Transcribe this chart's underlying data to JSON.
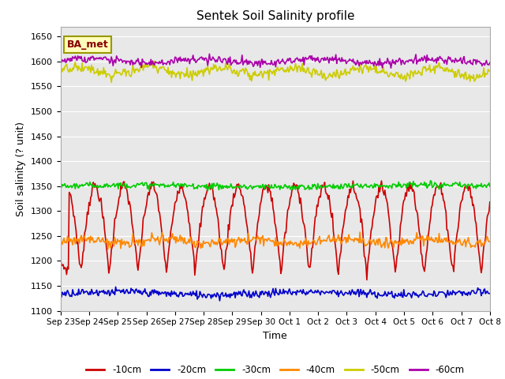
{
  "title": "Sentek Soil Salinity profile",
  "xlabel": "Time",
  "ylabel": "Soil salinity (? unit)",
  "ylim": [
    1100,
    1670
  ],
  "yticks": [
    1100,
    1150,
    1200,
    1250,
    1300,
    1350,
    1400,
    1450,
    1500,
    1550,
    1600,
    1650
  ],
  "annotation": "BA_met",
  "plot_bg_color": "#e8e8e8",
  "fig_bg_color": "#ffffff",
  "series": {
    "-10cm": {
      "color": "#cc0000",
      "lw": 1.2
    },
    "-20cm": {
      "color": "#0000cc",
      "lw": 1.2
    },
    "-30cm": {
      "color": "#00cc00",
      "lw": 1.2
    },
    "-40cm": {
      "color": "#ff8800",
      "lw": 1.2
    },
    "-50cm": {
      "color": "#cccc00",
      "lw": 1.2
    },
    "-60cm": {
      "color": "#aa00aa",
      "lw": 1.2
    }
  },
  "n_points": 500,
  "x_start": 0,
  "x_end": 15,
  "xtick_positions": [
    0,
    1,
    2,
    3,
    4,
    5,
    6,
    7,
    8,
    9,
    10,
    11,
    12,
    13,
    14,
    15
  ],
  "xtick_labels": [
    "Sep 23",
    "Sep 24",
    "Sep 25",
    "Sep 26",
    "Sep 27",
    "Sep 28",
    "Sep 29",
    "Sep 30",
    "Oct 1",
    "Oct 2",
    "Oct 3",
    "Oct 4",
    "Oct 5",
    "Oct 6",
    "Oct 7",
    "Oct 8"
  ],
  "legend_items": [
    "-10cm",
    "-20cm",
    "-30cm",
    "-40cm",
    "-50cm",
    "-60cm"
  ],
  "legend_colors": [
    "#cc0000",
    "#0000cc",
    "#00cc00",
    "#ff8800",
    "#cccc00",
    "#aa00aa"
  ],
  "annotation_facecolor": "#ffffbb",
  "annotation_edgecolor": "#999900",
  "annotation_textcolor": "#880000"
}
